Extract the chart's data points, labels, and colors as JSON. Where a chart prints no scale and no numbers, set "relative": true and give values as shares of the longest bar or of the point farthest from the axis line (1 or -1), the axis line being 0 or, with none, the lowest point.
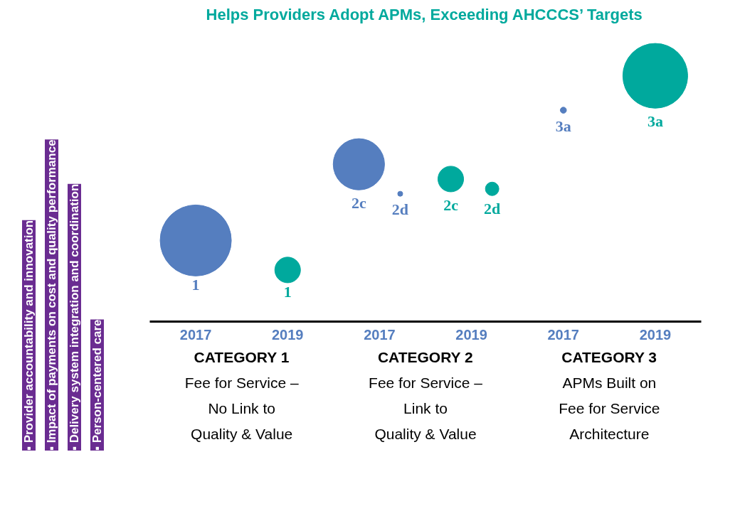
{
  "chart_data": {
    "type": "bubble",
    "relative": true,
    "title": "Helps Providers Adopt APMs, Exceeding AHCCCS’ Targets",
    "ylabel": "▪ Provider accountability and innovation\n▪ Impact of payments on cost and quality performance\n▪ Delivery system integration and coordination\n▪ Person-centered care",
    "categories": [
      "2017",
      "2019",
      "2017",
      "2019",
      "2017",
      "2019"
    ],
    "series": [
      {
        "name": "1",
        "colors": [
          "#557ebf",
          "#00a99d",
          null,
          null,
          null,
          null
        ],
        "values": [
          0.33,
          0.21,
          null,
          null,
          null,
          null
        ],
        "sizes": [
          1,
          0.13,
          null,
          null,
          null,
          null
        ]
      },
      {
        "name": "2c",
        "colors": [
          null,
          null,
          "#557ebf",
          "#00a99d",
          null,
          null
        ],
        "values": [
          null,
          null,
          0.64,
          0.58,
          null,
          null
        ],
        "sizes": [
          null,
          null,
          0.52,
          0.13,
          null,
          null
        ]
      },
      {
        "name": "2d",
        "colors": [
          null,
          null,
          "#557ebf",
          "#00a99d",
          null,
          null
        ],
        "values": [
          null,
          null,
          0.52,
          0.54,
          null,
          null
        ],
        "sizes": [
          null,
          null,
          0.005,
          0.036,
          null,
          null
        ]
      },
      {
        "name": "3a",
        "colors": [
          null,
          null,
          null,
          null,
          "#557ebf",
          "#00a99d"
        ],
        "values": [
          null,
          null,
          null,
          null,
          0.86,
          1
        ],
        "sizes": [
          null,
          null,
          null,
          null,
          0.0074,
          0.83
        ]
      }
    ],
    "annotations": [
      "CATEGORY 1\nFee for Service –\nNo Link to\nQuality & Value",
      "CATEGORY 2\nFee for Service –\nLink to\nQuality & Value",
      "CATEGORY 3\nAPMs Built on\nFee for Service\nArchitecture"
    ],
    "grid": false
  }
}
